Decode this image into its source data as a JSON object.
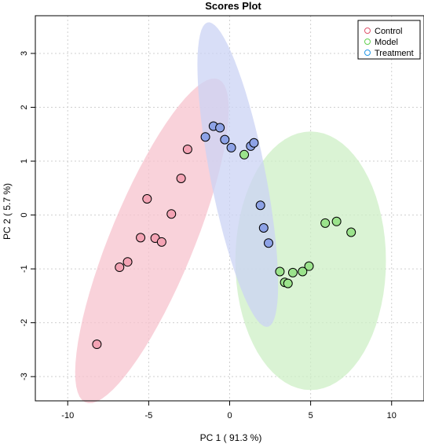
{
  "chart_data": {
    "type": "scatter",
    "title": "Scores Plot",
    "xlabel": "PC 1 ( 91.3 %)",
    "ylabel": "PC 2 ( 5.7 %)",
    "xlim": [
      -12,
      12
    ],
    "ylim": [
      -3.45,
      3.7
    ],
    "xticks": [
      -10,
      -5,
      0,
      5,
      10
    ],
    "yticks": [
      -3,
      -2,
      -1,
      0,
      1,
      2,
      3
    ],
    "grid": true,
    "legend_position": "top-right",
    "series": [
      {
        "name": "Control",
        "color": "#DF536B",
        "fill": "#F4A3B4",
        "ellipse_fill": "#F7C3CD",
        "points": [
          {
            "x": -2.6,
            "y": 1.22
          },
          {
            "x": -3.0,
            "y": 0.68
          },
          {
            "x": -5.1,
            "y": 0.3
          },
          {
            "x": -3.6,
            "y": 0.02
          },
          {
            "x": -5.5,
            "y": -0.42
          },
          {
            "x": -4.6,
            "y": -0.43
          },
          {
            "x": -4.2,
            "y": -0.5
          },
          {
            "x": -6.3,
            "y": -0.87
          },
          {
            "x": -6.8,
            "y": -0.97
          },
          {
            "x": -8.2,
            "y": -2.4
          }
        ],
        "ellipse": {
          "cx": -4.8,
          "cy": -0.48,
          "a": 5.4,
          "b": 1.55,
          "angle_deg": 30
        }
      },
      {
        "name": "Model",
        "color": "#61D04F",
        "fill": "#9BE38C",
        "ellipse_fill": "#CDEFC6",
        "points": [
          {
            "x": 0.9,
            "y": 1.12
          },
          {
            "x": 5.9,
            "y": -0.15
          },
          {
            "x": 6.6,
            "y": -0.12
          },
          {
            "x": 7.5,
            "y": -0.32
          },
          {
            "x": 4.9,
            "y": -0.95
          },
          {
            "x": 4.5,
            "y": -1.05
          },
          {
            "x": 3.1,
            "y": -1.05
          },
          {
            "x": 3.9,
            "y": -1.07
          },
          {
            "x": 3.4,
            "y": -1.25
          },
          {
            "x": 3.6,
            "y": -1.27
          }
        ],
        "ellipse": {
          "cx": 5.0,
          "cy": -0.85,
          "a": 4.65,
          "b": 2.4,
          "angle_deg": 0
        }
      },
      {
        "name": "Treatment",
        "color": "#2297E6",
        "fill": "#8DA2E6",
        "ellipse_fill": "#CBD3F4",
        "points": [
          {
            "x": -1.0,
            "y": 1.65
          },
          {
            "x": -0.6,
            "y": 1.62
          },
          {
            "x": -1.5,
            "y": 1.45
          },
          {
            "x": -0.3,
            "y": 1.4
          },
          {
            "x": 0.1,
            "y": 1.25
          },
          {
            "x": 1.3,
            "y": 1.28
          },
          {
            "x": 1.5,
            "y": 1.34
          },
          {
            "x": 1.9,
            "y": 0.18
          },
          {
            "x": 2.1,
            "y": -0.24
          },
          {
            "x": 2.4,
            "y": -0.52
          }
        ],
        "ellipse": {
          "cx": 0.5,
          "cy": 0.75,
          "a": 3.5,
          "b": 1.4,
          "angle_deg": -50
        }
      }
    ]
  }
}
